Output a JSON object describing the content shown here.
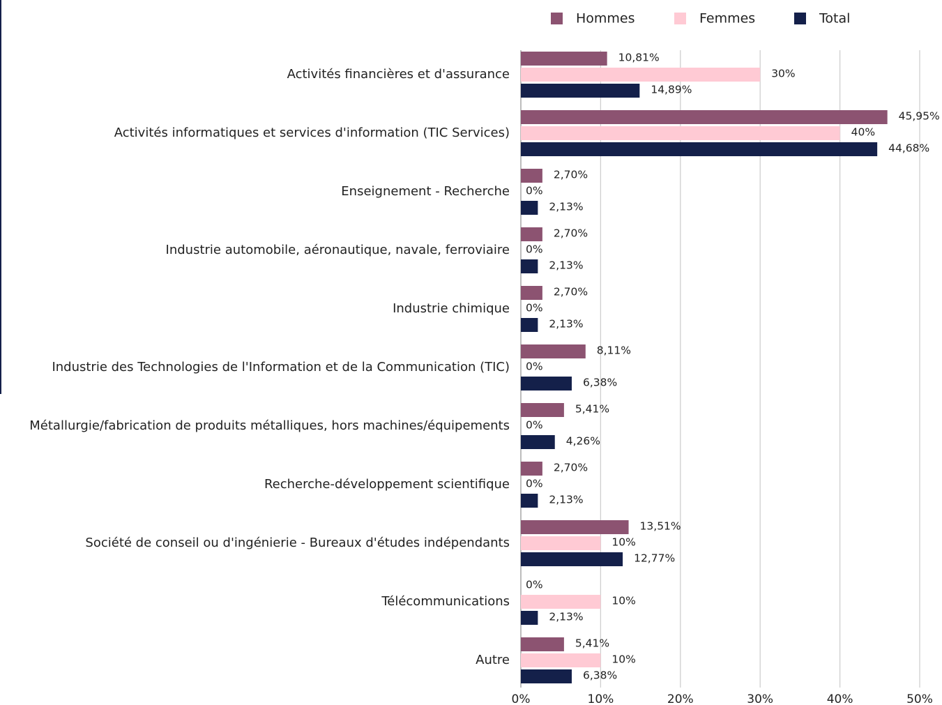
{
  "chart_data": {
    "type": "hbar",
    "categories": [
      "Activités financières et d'assurance",
      "Activités informatiques et services d'information (TIC Services)",
      "Enseignement - Recherche",
      "Industrie automobile, aéronautique, navale, ferroviaire",
      "Industrie chimique",
      "Industrie des Technologies de l'Information et de la Communication (TIC)",
      "Métallurgie/fabrication de produits métalliques, hors machines/équipements",
      "Recherche-développement scientifique",
      "Société de conseil ou d'ingénierie - Bureaux d'études indépendants",
      "Télécommunications",
      "Autre"
    ],
    "series": [
      {
        "name": "Hommes",
        "color": "#8c5371",
        "values": [
          10.81,
          45.95,
          2.7,
          2.7,
          2.7,
          8.11,
          5.41,
          2.7,
          13.51,
          0,
          5.41
        ],
        "value_labels": [
          "10,81%",
          "45,95%",
          "2,70%",
          "2,70%",
          "2,70%",
          "8,11%",
          "5,41%",
          "2,70%",
          "13,51%",
          "0%",
          "5,41%"
        ]
      },
      {
        "name": "Femmes",
        "color": "#ffcad4",
        "values": [
          30,
          40,
          0,
          0,
          0,
          0,
          0,
          0,
          10,
          10,
          10
        ],
        "value_labels": [
          "30%",
          "40%",
          "0%",
          "0%",
          "0%",
          "0%",
          "0%",
          "0%",
          "10%",
          "10%",
          "10%"
        ]
      },
      {
        "name": "Total",
        "color": "#14204a",
        "values": [
          14.89,
          44.68,
          2.13,
          2.13,
          2.13,
          6.38,
          4.26,
          2.13,
          12.77,
          2.13,
          6.38
        ],
        "value_labels": [
          "14,89%",
          "44,68%",
          "2,13%",
          "2,13%",
          "2,13%",
          "6,38%",
          "4,26%",
          "2,13%",
          "12,77%",
          "2,13%",
          "6,38%"
        ]
      }
    ],
    "xlim": [
      0,
      50
    ],
    "xticks": [
      {
        "value": 0,
        "label": "0%"
      },
      {
        "value": 10,
        "label": "10%"
      },
      {
        "value": 20,
        "label": "20%"
      },
      {
        "value": 30,
        "label": "30%"
      },
      {
        "value": 40,
        "label": "40%"
      },
      {
        "value": 50,
        "label": "50%"
      }
    ],
    "grid": true,
    "legend": "top"
  }
}
